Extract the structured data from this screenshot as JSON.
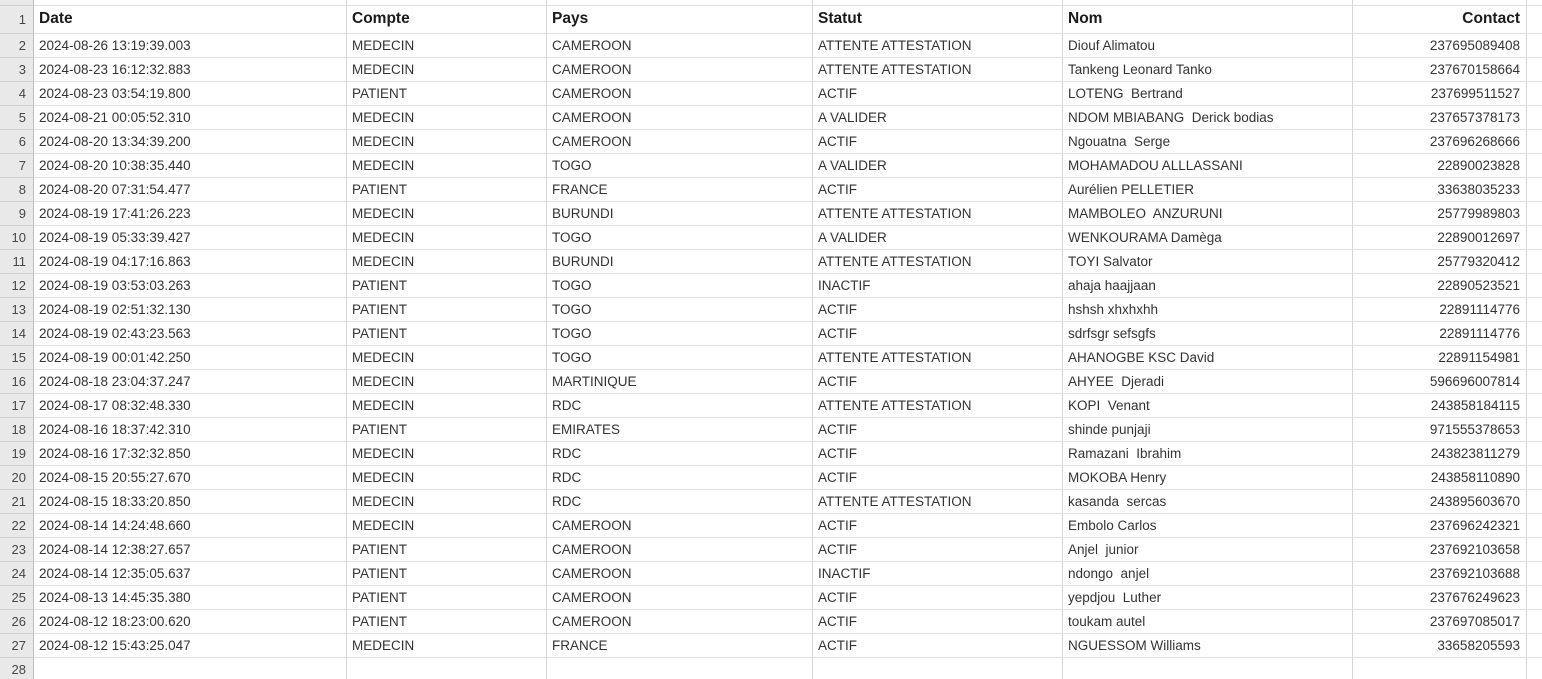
{
  "sheet": {
    "header_row_number": "1",
    "columns": [
      {
        "key": "date",
        "label": "Date"
      },
      {
        "key": "compte",
        "label": "Compte"
      },
      {
        "key": "pays",
        "label": "Pays"
      },
      {
        "key": "statut",
        "label": "Statut"
      },
      {
        "key": "nom",
        "label": "Nom"
      },
      {
        "key": "contact",
        "label": "Contact"
      }
    ],
    "rows": [
      {
        "n": "2",
        "date": "2024-08-26 13:19:39.003",
        "compte": "MEDECIN",
        "pays": "CAMEROON",
        "statut": "ATTENTE ATTESTATION",
        "nom": "Diouf Alimatou",
        "contact": "237695089408"
      },
      {
        "n": "3",
        "date": "2024-08-23 16:12:32.883",
        "compte": "MEDECIN",
        "pays": "CAMEROON",
        "statut": "ATTENTE ATTESTATION",
        "nom": "Tankeng Leonard Tanko",
        "contact": "237670158664"
      },
      {
        "n": "4",
        "date": "2024-08-23 03:54:19.800",
        "compte": "PATIENT",
        "pays": "CAMEROON",
        "statut": "ACTIF",
        "nom": "LOTENG  Bertrand",
        "contact": "237699511527"
      },
      {
        "n": "5",
        "date": "2024-08-21 00:05:52.310",
        "compte": "MEDECIN",
        "pays": "CAMEROON",
        "statut": "A VALIDER",
        "nom": "NDOM MBIABANG  Derick bodias",
        "contact": "237657378173"
      },
      {
        "n": "6",
        "date": "2024-08-20 13:34:39.200",
        "compte": "MEDECIN",
        "pays": "CAMEROON",
        "statut": "ACTIF",
        "nom": "Ngouatna  Serge",
        "contact": "237696268666"
      },
      {
        "n": "7",
        "date": "2024-08-20 10:38:35.440",
        "compte": "MEDECIN",
        "pays": "TOGO",
        "statut": "A VALIDER",
        "nom": "MOHAMADOU ALLLASSANI",
        "contact": "22890023828"
      },
      {
        "n": "8",
        "date": "2024-08-20 07:31:54.477",
        "compte": "PATIENT",
        "pays": "FRANCE",
        "statut": "ACTIF",
        "nom": "Aurélien PELLETIER",
        "contact": "33638035233"
      },
      {
        "n": "9",
        "date": "2024-08-19 17:41:26.223",
        "compte": "MEDECIN",
        "pays": "BURUNDI",
        "statut": "ATTENTE ATTESTATION",
        "nom": "MAMBOLEO  ANZURUNI",
        "contact": "25779989803"
      },
      {
        "n": "10",
        "date": "2024-08-19 05:33:39.427",
        "compte": "MEDECIN",
        "pays": "TOGO",
        "statut": "A VALIDER",
        "nom": "WENKOURAMA Damèga",
        "contact": "22890012697"
      },
      {
        "n": "11",
        "date": "2024-08-19 04:17:16.863",
        "compte": "MEDECIN",
        "pays": "BURUNDI",
        "statut": "ATTENTE ATTESTATION",
        "nom": "TOYI Salvator",
        "contact": "25779320412"
      },
      {
        "n": "12",
        "date": "2024-08-19 03:53:03.263",
        "compte": "PATIENT",
        "pays": "TOGO",
        "statut": "INACTIF",
        "nom": "ahaja haajjaan",
        "contact": "22890523521"
      },
      {
        "n": "13",
        "date": "2024-08-19 02:51:32.130",
        "compte": "PATIENT",
        "pays": "TOGO",
        "statut": "ACTIF",
        "nom": "hshsh xhxhxhh",
        "contact": "22891114776"
      },
      {
        "n": "14",
        "date": "2024-08-19 02:43:23.563",
        "compte": "PATIENT",
        "pays": "TOGO",
        "statut": "ACTIF",
        "nom": "sdrfsgr sefsgfs",
        "contact": "22891114776"
      },
      {
        "n": "15",
        "date": "2024-08-19 00:01:42.250",
        "compte": "MEDECIN",
        "pays": "TOGO",
        "statut": "ATTENTE ATTESTATION",
        "nom": "AHANOGBE KSC David",
        "contact": "22891154981"
      },
      {
        "n": "16",
        "date": "2024-08-18 23:04:37.247",
        "compte": "MEDECIN",
        "pays": "MARTINIQUE",
        "statut": "ACTIF",
        "nom": "AHYEE  Djeradi",
        "contact": "596696007814"
      },
      {
        "n": "17",
        "date": "2024-08-17 08:32:48.330",
        "compte": "MEDECIN",
        "pays": "RDC",
        "statut": "ATTENTE ATTESTATION",
        "nom": "KOPI  Venant",
        "contact": "243858184115"
      },
      {
        "n": "18",
        "date": "2024-08-16 18:37:42.310",
        "compte": "PATIENT",
        "pays": "EMIRATES",
        "statut": "ACTIF",
        "nom": "shinde punjaji",
        "contact": "971555378653"
      },
      {
        "n": "19",
        "date": "2024-08-16 17:32:32.850",
        "compte": "MEDECIN",
        "pays": "RDC",
        "statut": "ACTIF",
        "nom": "Ramazani  Ibrahim",
        "contact": "243823811279"
      },
      {
        "n": "20",
        "date": "2024-08-15 20:55:27.670",
        "compte": "MEDECIN",
        "pays": "RDC",
        "statut": "ACTIF",
        "nom": "MOKOBA Henry",
        "contact": "243858110890"
      },
      {
        "n": "21",
        "date": "2024-08-15 18:33:20.850",
        "compte": "MEDECIN",
        "pays": "RDC",
        "statut": "ATTENTE ATTESTATION",
        "nom": "kasanda  sercas",
        "contact": "243895603670"
      },
      {
        "n": "22",
        "date": "2024-08-14 14:24:48.660",
        "compte": "MEDECIN",
        "pays": "CAMEROON",
        "statut": "ACTIF",
        "nom": "Embolo Carlos",
        "contact": "237696242321"
      },
      {
        "n": "23",
        "date": "2024-08-14 12:38:27.657",
        "compte": "PATIENT",
        "pays": "CAMEROON",
        "statut": "ACTIF",
        "nom": "Anjel  junior",
        "contact": "237692103658"
      },
      {
        "n": "24",
        "date": "2024-08-14 12:35:05.637",
        "compte": "PATIENT",
        "pays": "CAMEROON",
        "statut": "INACTIF",
        "nom": "ndongo  anjel",
        "contact": "237692103688"
      },
      {
        "n": "25",
        "date": "2024-08-13 14:45:35.380",
        "compte": "PATIENT",
        "pays": "CAMEROON",
        "statut": "ACTIF",
        "nom": "yepdjou  Luther",
        "contact": "237676249623"
      },
      {
        "n": "26",
        "date": "2024-08-12 18:23:00.620",
        "compte": "PATIENT",
        "pays": "CAMEROON",
        "statut": "ACTIF",
        "nom": "toukam autel",
        "contact": "237697085017"
      },
      {
        "n": "27",
        "date": "2024-08-12 15:43:25.047",
        "compte": "MEDECIN",
        "pays": "FRANCE",
        "statut": "ACTIF",
        "nom": "NGUESSOM Williams",
        "contact": "33658205593"
      },
      {
        "n": "28",
        "date": "",
        "compte": "",
        "pays": "",
        "statut": "",
        "nom": "",
        "contact": ""
      }
    ]
  },
  "colors": {
    "grid-v": "#d6d6d6",
    "grid-h": "#e0e0e0",
    "gutter-bg": "#e9e9e9",
    "gutter-border": "#bdbdbd",
    "gutter-sep": "#d0d0d0",
    "header-text": "#1a1a1a",
    "cell-text": "#333333",
    "gutter-text": "#474747",
    "sheet-bg": "#ffffff"
  }
}
